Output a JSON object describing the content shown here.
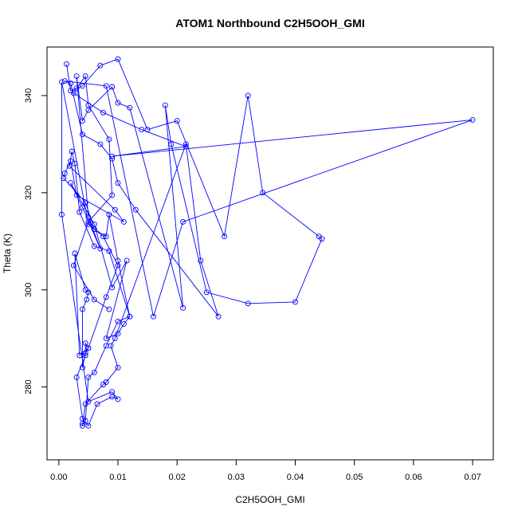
{
  "chart_data": {
    "type": "line",
    "title": "ATOM1 Northbound C2H5OOH_GMI",
    "xlabel": "C2H5OOH_GMI",
    "ylabel": "Theta (K)",
    "xlim": [
      -0.002,
      0.0735
    ],
    "ylim": [
      265,
      350
    ],
    "x_ticks": [
      0.0,
      0.01,
      0.02,
      0.03,
      0.04,
      0.05,
      0.06,
      0.07
    ],
    "x_tick_labels": [
      "0.00",
      "0.01",
      "0.02",
      "0.03",
      "0.04",
      "0.05",
      "0.06",
      "0.07"
    ],
    "y_ticks": [
      280,
      300,
      320,
      340
    ],
    "y_tick_labels": [
      "280",
      "300",
      "320",
      "340"
    ],
    "grid": false,
    "series": [
      {
        "color": "#0000ff",
        "markers": "open-circle",
        "x": [
          0.0013,
          0.002,
          0.004,
          0.007,
          0.01,
          0.015,
          0.02,
          0.028,
          0.032,
          0.0345,
          0.044,
          0.0445,
          0.04,
          0.032,
          0.025,
          0.019,
          0.018,
          0.021,
          0.012,
          0.01,
          0.009,
          0.005,
          0.004,
          0.003,
          0.005,
          0.007,
          0.004,
          0.002,
          0.006,
          0.009,
          0.0115,
          0.008,
          0.01,
          0.011,
          0.012,
          0.0085,
          0.006,
          0.0035,
          0.0027,
          0.0022,
          0.0018,
          0.0095,
          0.011,
          0.003,
          0.002,
          0.001,
          0.0008,
          0.0045,
          0.006,
          0.0075,
          0.01,
          0.008,
          0.005,
          0.0035,
          0.0027,
          0.0045,
          0.005,
          0.0047,
          0.004,
          0.004,
          0.0045,
          0.005,
          0.0045,
          0.0045,
          0.003,
          0.004,
          0.005,
          0.0065,
          0.009,
          0.01,
          0.009,
          0.005,
          0.0005,
          0.0005,
          0.005,
          0.006,
          0.008,
          0.0085,
          0.01,
          0.012,
          0.01,
          0.008,
          0.006,
          0.005,
          0.0045,
          0.004,
          0.004,
          0.0045,
          0.0075,
          0.008,
          0.01,
          0.0088,
          0.0095,
          0.0215,
          0.024,
          0.027,
          0.013,
          0.01,
          0.009,
          0.007,
          0.004,
          0.002,
          0.001,
          0.008,
          0.016,
          0.021,
          0.07,
          0.009,
          0.0215,
          0.014,
          0.0075,
          0.0025,
          0.003,
          0.0045,
          0.005,
          0.0085,
          0.009,
          0.005,
          0.0025,
          0.006,
          0.0085
        ],
        "y": [
          346.5,
          341.0,
          342.0,
          346.2,
          347.5,
          333.0,
          334.8,
          311.0,
          340.0,
          320.0,
          311.0,
          310.5,
          297.5,
          297.2,
          299.5,
          330.0,
          338.0,
          296.3,
          337.5,
          338.5,
          341.8,
          337.0,
          334.8,
          344.0,
          315.0,
          308.5,
          317.0,
          322.0,
          313.5,
          300.5,
          306.0,
          290.0,
          291.0,
          293.0,
          294.5,
          308.0,
          309.0,
          316.0,
          326.0,
          328.5,
          325.5,
          316.5,
          314.0,
          319.5,
          326.5,
          324.0,
          323.0,
          318.0,
          312.5,
          311.0,
          305.0,
          298.5,
          288.0,
          286.5,
          307.5,
          300.0,
          299.5,
          298.0,
          296.0,
          284.0,
          287.0,
          288.0,
          289.0,
          286.5,
          282.0,
          273.5,
          272.0,
          276.5,
          278.0,
          277.5,
          279.0,
          277.0,
          315.5,
          342.8,
          313.5,
          312.5,
          311.0,
          315.5,
          306.0,
          294.5,
          293.5,
          288.5,
          283.0,
          282.0,
          273.0,
          272.5,
          272.0,
          276.5,
          280.5,
          281.0,
          284.0,
          288.5,
          290.0,
          330.0,
          306.0,
          294.5,
          316.5,
          322.0,
          327.0,
          330.0,
          332.0,
          342.5,
          343.0,
          342.0,
          294.5,
          314.0,
          335.0,
          327.5,
          329.5,
          333.0,
          336.5,
          340.5,
          341.5,
          344.0,
          338.0,
          331.0,
          319.5,
          314.0,
          305.0,
          298.0,
          296.0
        ]
      }
    ]
  }
}
